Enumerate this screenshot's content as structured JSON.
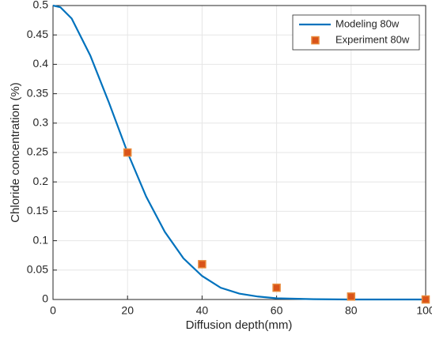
{
  "chart_data": {
    "type": "line",
    "xlabel": "Diffusion depth(mm)",
    "ylabel": "Chloride concentration (%)",
    "xlim": [
      0,
      100
    ],
    "xticks": [
      0,
      20,
      40,
      60,
      80,
      100
    ],
    "ylim": [
      0,
      0.5
    ],
    "yticks": [
      0,
      0.05,
      0.1,
      0.15,
      0.2,
      0.25,
      0.3,
      0.35,
      0.4,
      0.45,
      0.5
    ],
    "grid": true,
    "legend": "top-right",
    "series": [
      {
        "name": "Modeling 80w",
        "type": "line",
        "color": "#0072bd",
        "x": [
          0,
          2,
          5,
          10,
          15,
          20,
          25,
          30,
          35,
          40,
          45,
          50,
          55,
          60,
          70,
          80,
          90,
          100
        ],
        "values": [
          0.5,
          0.497,
          0.478,
          0.415,
          0.335,
          0.25,
          0.175,
          0.115,
          0.07,
          0.04,
          0.02,
          0.01,
          0.005,
          0.002,
          0.0005,
          0,
          0,
          0
        ]
      },
      {
        "name": "Experiment 80w",
        "type": "scatter",
        "color": "#d95319",
        "x": [
          20,
          40,
          60,
          80,
          100
        ],
        "values": [
          0.25,
          0.06,
          0.02,
          0.005,
          0
        ]
      }
    ]
  }
}
